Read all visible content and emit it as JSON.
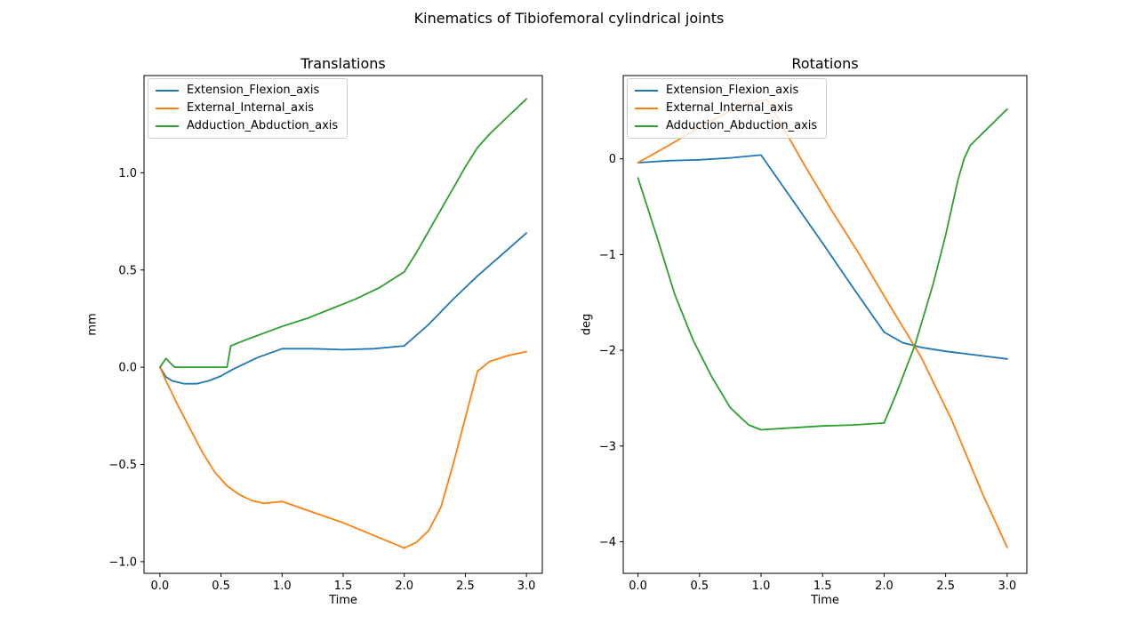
{
  "figure": {
    "suptitle": "Kinematics of Tibiofemoral cylindrical joints",
    "background": "#ffffff",
    "axis_color": "#000000"
  },
  "chart_data": [
    {
      "type": "line",
      "title": "Translations",
      "xlabel": "Time",
      "ylabel": "mm",
      "xlim": [
        -0.13,
        3.13
      ],
      "ylim": [
        -1.06,
        1.5
      ],
      "grid": false,
      "legend_position": "upper left",
      "xticks": {
        "values": [
          0.0,
          0.5,
          1.0,
          1.5,
          2.0,
          2.5,
          3.0
        ],
        "labels": [
          "0.0",
          "0.5",
          "1.0",
          "1.5",
          "2.0",
          "2.5",
          "3.0"
        ]
      },
      "yticks": {
        "values": [
          -1.0,
          -0.5,
          0.0,
          0.5,
          1.0
        ],
        "labels": [
          "−1.0",
          "−0.5",
          "0.0",
          "0.5",
          "1.0"
        ]
      },
      "series": [
        {
          "name": "Extension_Flexion_axis",
          "color": "#1f77b4",
          "x": [
            0,
            0.05,
            0.1,
            0.2,
            0.3,
            0.4,
            0.5,
            0.6,
            0.8,
            1.0,
            1.25,
            1.5,
            1.75,
            2.0,
            2.2,
            2.4,
            2.6,
            2.8,
            3.0
          ],
          "y": [
            0,
            -0.05,
            -0.07,
            -0.085,
            -0.085,
            -0.07,
            -0.045,
            -0.01,
            0.05,
            0.095,
            0.095,
            0.09,
            0.095,
            0.11,
            0.22,
            0.35,
            0.47,
            0.58,
            0.69
          ]
        },
        {
          "name": "External_Internal_axis",
          "color": "#ff7f0e",
          "x": [
            0,
            0.05,
            0.15,
            0.25,
            0.35,
            0.45,
            0.55,
            0.65,
            0.75,
            0.85,
            1.0,
            1.25,
            1.5,
            1.75,
            2.0,
            2.1,
            2.2,
            2.3,
            2.4,
            2.5,
            2.6,
            2.7,
            2.85,
            3.0
          ],
          "y": [
            0,
            -0.07,
            -0.2,
            -0.32,
            -0.44,
            -0.54,
            -0.61,
            -0.655,
            -0.685,
            -0.7,
            -0.69,
            -0.745,
            -0.8,
            -0.865,
            -0.93,
            -0.9,
            -0.84,
            -0.72,
            -0.5,
            -0.26,
            -0.02,
            0.03,
            0.06,
            0.08
          ]
        },
        {
          "name": "Adduction_Abduction_axis",
          "color": "#2ca02c",
          "x": [
            0,
            0.05,
            0.12,
            0.3,
            0.45,
            0.55,
            0.58,
            0.7,
            0.85,
            1.0,
            1.2,
            1.4,
            1.6,
            1.8,
            2.0,
            2.1,
            2.2,
            2.3,
            2.4,
            2.5,
            2.6,
            2.7,
            2.85,
            3.0
          ],
          "y": [
            0,
            0.045,
            0.0,
            0.0,
            0.0,
            0.0,
            0.11,
            0.14,
            0.175,
            0.21,
            0.25,
            0.3,
            0.35,
            0.41,
            0.49,
            0.59,
            0.7,
            0.81,
            0.92,
            1.03,
            1.13,
            1.2,
            1.29,
            1.38
          ]
        }
      ]
    },
    {
      "type": "line",
      "title": "Rotations",
      "xlabel": "Time",
      "ylabel": "deg",
      "xlim": [
        -0.12,
        3.16
      ],
      "ylim": [
        -4.33,
        0.87
      ],
      "grid": false,
      "legend_position": "upper left",
      "xticks": {
        "values": [
          0.0,
          0.5,
          1.0,
          1.5,
          2.0,
          2.5,
          3.0
        ],
        "labels": [
          "0.0",
          "0.5",
          "1.0",
          "1.5",
          "2.0",
          "2.5",
          "3.0"
        ]
      },
      "yticks": {
        "values": [
          0,
          -1,
          -2,
          -3,
          -4
        ],
        "labels": [
          "0",
          "−1",
          "−2",
          "−3",
          "−4"
        ]
      },
      "series": [
        {
          "name": "Extension_Flexion_axis",
          "color": "#1f77b4",
          "x": [
            0,
            0.25,
            0.5,
            0.75,
            1.0,
            1.25,
            1.5,
            1.75,
            2.0,
            2.15,
            2.3,
            2.5,
            2.75,
            3.0
          ],
          "y": [
            -0.04,
            -0.02,
            -0.01,
            0.01,
            0.04,
            -0.42,
            -0.88,
            -1.35,
            -1.81,
            -1.92,
            -1.97,
            -2.01,
            -2.05,
            -2.09
          ]
        },
        {
          "name": "External_Internal_axis",
          "color": "#ff7f0e",
          "x": [
            0,
            0.25,
            0.5,
            0.75,
            0.9,
            1.05,
            1.2,
            1.35,
            1.55,
            1.8,
            2.05,
            2.3,
            2.55,
            2.8,
            3.0
          ],
          "y": [
            -0.04,
            0.14,
            0.33,
            0.5,
            0.58,
            0.62,
            0.28,
            -0.06,
            -0.49,
            -1.0,
            -1.54,
            -2.07,
            -2.73,
            -3.5,
            -4.06
          ]
        },
        {
          "name": "Adduction_Abduction_axis",
          "color": "#2ca02c",
          "x": [
            0,
            0.15,
            0.3,
            0.45,
            0.6,
            0.75,
            0.9,
            1.0,
            1.25,
            1.5,
            1.75,
            2.0,
            2.1,
            2.25,
            2.4,
            2.5,
            2.6,
            2.65,
            2.7,
            2.85,
            3.0
          ],
          "y": [
            -0.2,
            -0.8,
            -1.42,
            -1.9,
            -2.28,
            -2.6,
            -2.78,
            -2.83,
            -2.81,
            -2.79,
            -2.78,
            -2.76,
            -2.45,
            -1.95,
            -1.3,
            -0.8,
            -0.22,
            0.0,
            0.14,
            0.33,
            0.52
          ]
        }
      ]
    }
  ]
}
